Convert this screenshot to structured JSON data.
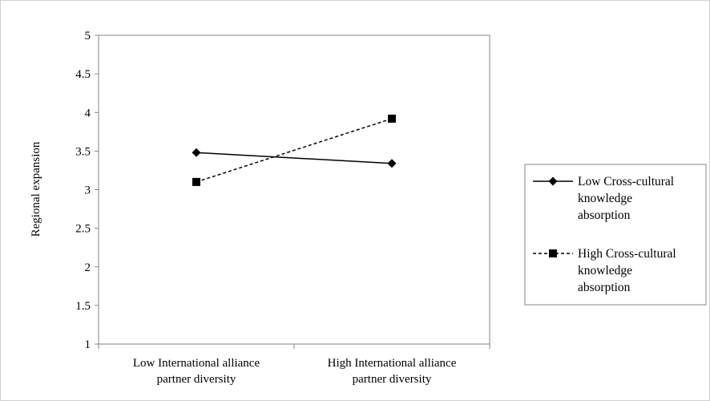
{
  "chart_data": {
    "type": "line",
    "title": "",
    "xlabel": "",
    "ylabel": "Regional expansion",
    "ylim": [
      1,
      5
    ],
    "yticks": [
      "1",
      "1.5",
      "2",
      "2.5",
      "3",
      "3.5",
      "4",
      "4.5",
      "5"
    ],
    "categories": [
      [
        "Low International alliance",
        "partner diversity"
      ],
      [
        "High International alliance",
        "partner diversity"
      ]
    ],
    "series": [
      {
        "name": [
          "Low Cross-cultural",
          "knowledge",
          "absorption"
        ],
        "values": [
          3.48,
          3.34
        ],
        "line_style": "solid",
        "marker": "diamond",
        "color": "#000000"
      },
      {
        "name": [
          "High Cross-cultural",
          "knowledge",
          "absorption"
        ],
        "values": [
          3.1,
          3.92
        ],
        "line_style": "dashed",
        "marker": "square",
        "color": "#000000"
      }
    ],
    "grid": false,
    "legend_position": "right"
  }
}
